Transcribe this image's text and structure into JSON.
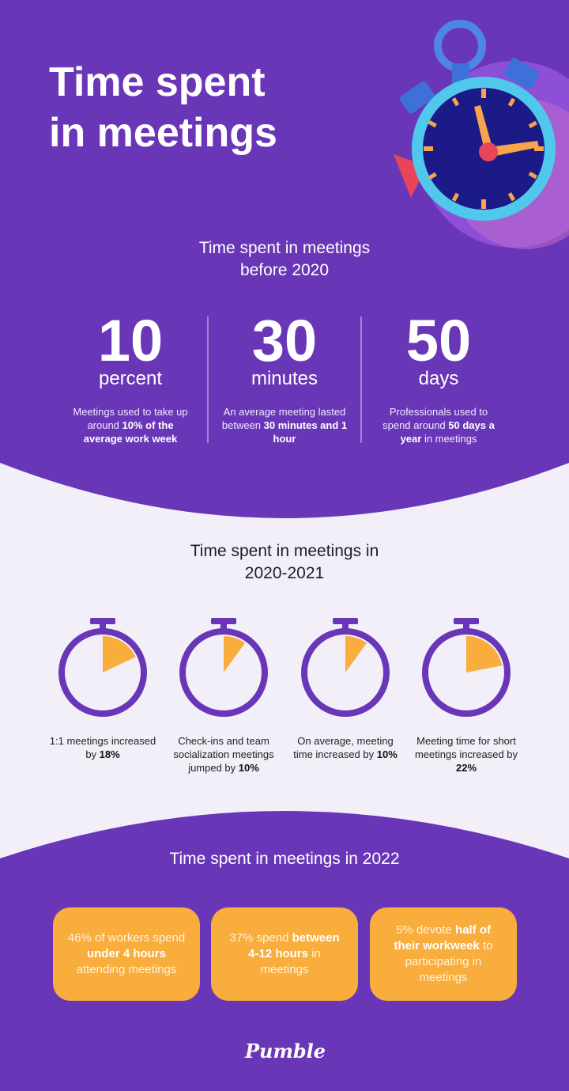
{
  "header": {
    "title_lines": [
      "Time spent",
      "in meetings"
    ]
  },
  "before_2020": {
    "heading": "Time spent in meetings before 2020",
    "stats": [
      {
        "number": 10,
        "unit": "percent",
        "description": [
          {
            "text": "Meetings used to take up around "
          },
          {
            "text": "10% of the average work week",
            "bold": true
          }
        ]
      },
      {
        "number": 30,
        "unit": "minutes",
        "description": [
          {
            "text": "An average meeting lasted between "
          },
          {
            "text": "30 minutes and 1 hour",
            "bold": true
          }
        ]
      },
      {
        "number": 50,
        "unit": "days",
        "description": [
          {
            "text": "Professionals used to spend around "
          },
          {
            "text": "50 days a year",
            "bold": true
          },
          {
            "text": " in meetings"
          }
        ]
      }
    ]
  },
  "in_2020_2021": {
    "heading": "Time spent in meetings in 2020-2021",
    "items": [
      {
        "value": 18,
        "caption": [
          {
            "text": "1:1 meetings increased by "
          },
          {
            "text": "18%",
            "bold": true
          }
        ]
      },
      {
        "value": 10,
        "caption": [
          {
            "text": "Check-ins and team socialization meetings jumped by "
          },
          {
            "text": "10%",
            "bold": true
          }
        ]
      },
      {
        "value": 10,
        "caption": [
          {
            "text": "On average, meeting time increased by "
          },
          {
            "text": "10%",
            "bold": true
          }
        ]
      },
      {
        "value": 22,
        "caption": [
          {
            "text": "Meeting time for short meetings increased by "
          },
          {
            "text": "22%",
            "bold": true
          }
        ]
      }
    ]
  },
  "in_2022": {
    "heading": "Time spent in meetings in 2022",
    "cards": [
      [
        {
          "text": "46% of workers spend "
        },
        {
          "text": "under 4 hours",
          "bold": true
        },
        {
          "text": " attending meetings"
        }
      ],
      [
        {
          "text": "37% spend "
        },
        {
          "text": "between 4-12 hours",
          "bold": true
        },
        {
          "text": " in meetings"
        }
      ],
      [
        {
          "text": "5% devote "
        },
        {
          "text": "half of their workweek",
          "bold": true
        },
        {
          "text": " to participating in meetings"
        }
      ]
    ]
  },
  "footer": {
    "logo": "Pumble"
  }
}
